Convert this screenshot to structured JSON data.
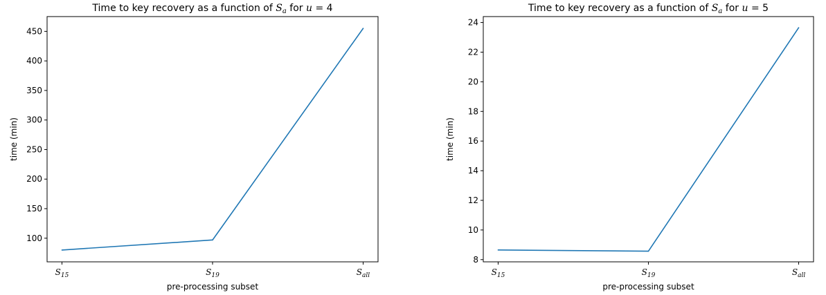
{
  "chart_data": [
    {
      "type": "line",
      "title": {
        "prefix": "Time to key recovery as a function of ",
        "var": "S",
        "sub": "a",
        "mid": " for ",
        "param": "u",
        "eq": " = ",
        "value": "4"
      },
      "xlabel": "pre-processing subset",
      "ylabel": "time (min)",
      "categories": [
        {
          "base": "S",
          "sub": "15"
        },
        {
          "base": "S",
          "sub": "19"
        },
        {
          "base": "S",
          "sub": "all"
        }
      ],
      "values": [
        80,
        97,
        455
      ],
      "ylim": [
        60,
        475
      ],
      "yticks": [
        100,
        150,
        200,
        250,
        300,
        350,
        400,
        450
      ],
      "grid": false,
      "line_color": "#1f77b4"
    },
    {
      "type": "line",
      "title": {
        "prefix": "Time to key recovery as a function of ",
        "var": "S",
        "sub": "a",
        "mid": " for ",
        "param": "u",
        "eq": " = ",
        "value": "5"
      },
      "xlabel": "pre-processing subset",
      "ylabel": "time (min)",
      "categories": [
        {
          "base": "S",
          "sub": "15"
        },
        {
          "base": "S",
          "sub": "19"
        },
        {
          "base": "S",
          "sub": "all"
        }
      ],
      "values": [
        8.65,
        8.57,
        23.65
      ],
      "ylim": [
        7.85,
        24.4
      ],
      "yticks": [
        8,
        10,
        12,
        14,
        16,
        18,
        20,
        22,
        24
      ],
      "grid": false,
      "line_color": "#1f77b4"
    }
  ]
}
